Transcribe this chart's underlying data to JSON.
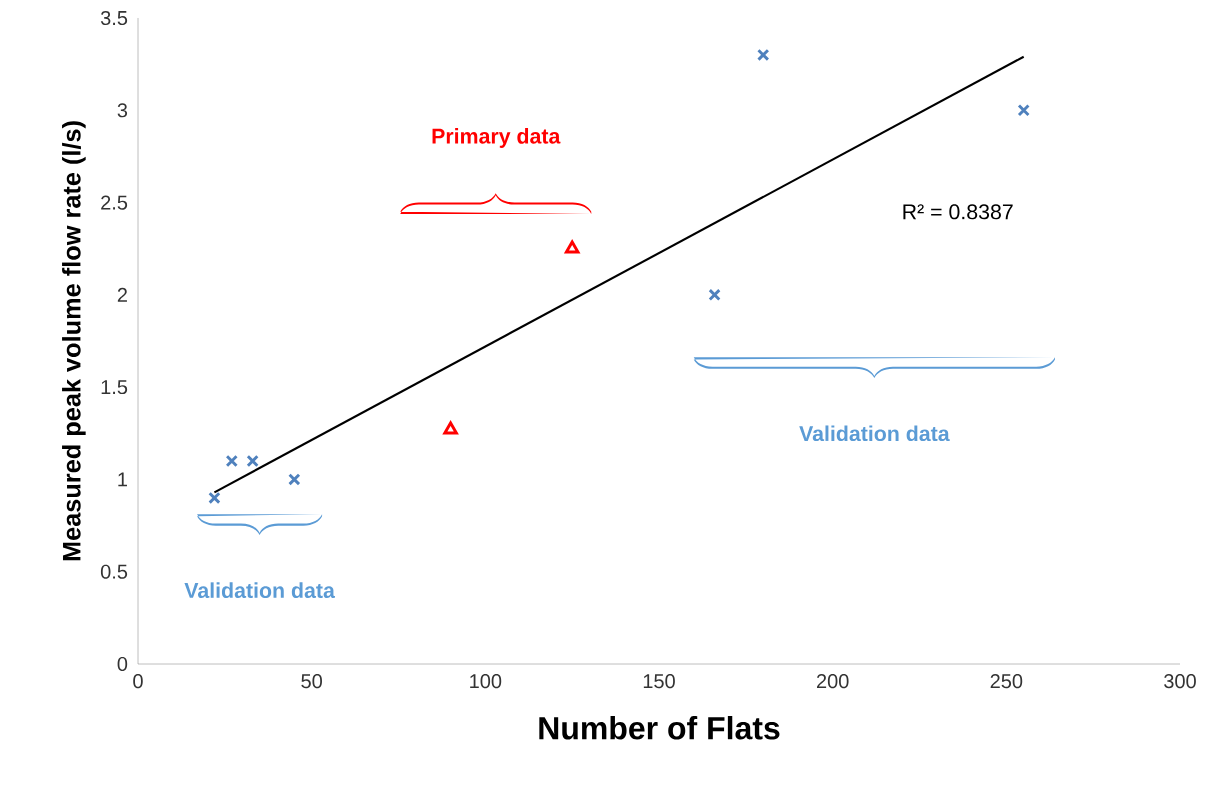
{
  "chart_data": {
    "type": "scatter",
    "xlabel": "Number of Flats",
    "ylabel": "Measured peak volume flow rate (l/s)",
    "series": [
      {
        "color": "#4f81bd",
        "marker": "cross",
        "x": [
          22,
          27,
          33,
          45,
          166,
          180,
          255
        ],
        "values": [
          0.9,
          1.1,
          1.1,
          1.0,
          2.0,
          3.3,
          3.0
        ]
      },
      {
        "color": "#ff0000",
        "marker": "triangle",
        "x": [
          90,
          125
        ],
        "values": [
          1.27,
          2.25
        ]
      },
      {
        "type": "line",
        "color": "#000000",
        "marker": "none",
        "x": [
          22,
          255
        ],
        "values": [
          0.93,
          3.29
        ]
      }
    ],
    "xlim": [
      0,
      300
    ],
    "xticks": [
      0,
      50,
      100,
      150,
      200,
      250,
      300
    ],
    "ylim": [
      0,
      3.5
    ],
    "yticks": [
      0,
      0.5,
      1,
      1.5,
      2,
      2.5,
      3,
      3.5
    ],
    "grid": false,
    "annotations": [
      "Primary data",
      "Validation data",
      "Validation data",
      "R² = 0.8387"
    ]
  }
}
